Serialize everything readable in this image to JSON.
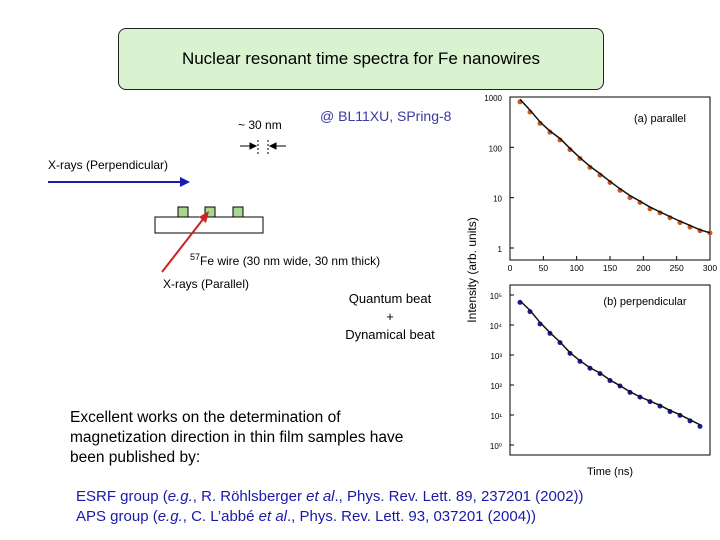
{
  "title": "Nuclear resonant time spectra for Fe nanowires",
  "facility": "@ BL11XU, SPring-8",
  "diagram": {
    "spacing_label": "~ 30 nm",
    "perpendicular_label": "X-rays (Perpendicular)",
    "wire_isotope": "57",
    "wire_label": "Fe wire (30 nm wide, 30 nm thick)",
    "parallel_label": "X-rays (Parallel)",
    "arrow_color": "#1a1ab0",
    "parallel_arrow_color": "#cc2222",
    "wire_color": "#a8d890"
  },
  "beat_text": {
    "line1": "Quantum beat",
    "line2": "+",
    "line3": "Dynamical beat"
  },
  "description": "Excellent works on the determination of magnetization direction in thin film samples have been published by:",
  "references": [
    {
      "group": "ESRF group",
      "pre": " (",
      "eg": "e.g.",
      "mid": ", R. Röhlsberger ",
      "etal": "et al",
      "post": "., Phys. Rev. Lett. 89, 237201 (2002))"
    },
    {
      "group": "APS group",
      "pre": " (",
      "eg": "e.g.",
      "mid": ", C. L’abbé ",
      "etal": "et al",
      "post": "., Phys. Rev. Lett. 93, 037201 (2004))"
    }
  ],
  "chart_data": [
    {
      "type": "scatter",
      "title": "(a) parallel",
      "ylabel": "Intensity (arb. units)",
      "xlabel": "",
      "xlim": [
        0,
        300
      ],
      "x_ticks": [
        "0",
        "50",
        "100",
        "150",
        "200",
        "250",
        "300"
      ],
      "y_scale": "log",
      "ylim": [
        1,
        1000
      ],
      "y_ticks": [
        "1",
        "10",
        "100",
        "1000"
      ],
      "series": [
        {
          "name": "",
          "color": "#cc5a1e",
          "style": "points",
          "x": [
            15,
            30,
            45,
            60,
            75,
            90,
            105,
            120,
            135,
            150,
            165,
            180,
            195,
            210,
            225,
            240,
            255,
            270,
            285,
            300
          ],
          "y": [
            800,
            500,
            300,
            200,
            140,
            90,
            60,
            40,
            28,
            20,
            14,
            10,
            8,
            6,
            5,
            4,
            3.2,
            2.6,
            2.2,
            2
          ]
        },
        {
          "name": "",
          "color": "#111111",
          "style": "line",
          "x": [
            15,
            30,
            45,
            60,
            75,
            90,
            105,
            120,
            135,
            150,
            165,
            180,
            195,
            210,
            225,
            240,
            255,
            270,
            285,
            300
          ],
          "y": [
            900,
            550,
            320,
            210,
            150,
            95,
            62,
            42,
            30,
            21,
            15,
            11,
            8.5,
            6.5,
            5.2,
            4.2,
            3.4,
            2.8,
            2.3,
            2
          ]
        }
      ]
    },
    {
      "type": "scatter",
      "title": "(b) perpendicular",
      "ylabel": "Time (ns)",
      "xlabel": "Time (ns)",
      "xlim": [
        0,
        300
      ],
      "y_scale": "log",
      "ylim": [
        1.0,
        100000.0
      ],
      "y_ticks": [
        "10⁵",
        "10⁴",
        "10³",
        "10²",
        "10¹",
        "10⁰"
      ],
      "series": [
        {
          "name": "",
          "color": "#1a1aa8",
          "style": "points",
          "x": [
            15,
            30,
            45,
            60,
            75,
            90,
            105,
            120,
            135,
            150,
            165,
            180,
            195,
            210,
            225,
            240,
            255,
            270,
            285
          ],
          "y": [
            40000,
            20000,
            8000,
            4000,
            2000,
            900,
            500,
            300,
            200,
            120,
            80,
            50,
            35,
            25,
            18,
            12,
            9,
            6,
            4
          ]
        },
        {
          "name": "",
          "color": "#111111",
          "style": "line",
          "x": [
            15,
            30,
            45,
            60,
            75,
            90,
            105,
            120,
            135,
            150,
            165,
            180,
            195,
            210,
            225,
            240,
            255,
            270,
            285
          ],
          "y": [
            45000,
            22000,
            9000,
            4200,
            2100,
            950,
            520,
            310,
            210,
            125,
            82,
            52,
            36,
            26,
            19,
            13,
            9.5,
            6.5,
            4.5
          ]
        }
      ]
    }
  ]
}
